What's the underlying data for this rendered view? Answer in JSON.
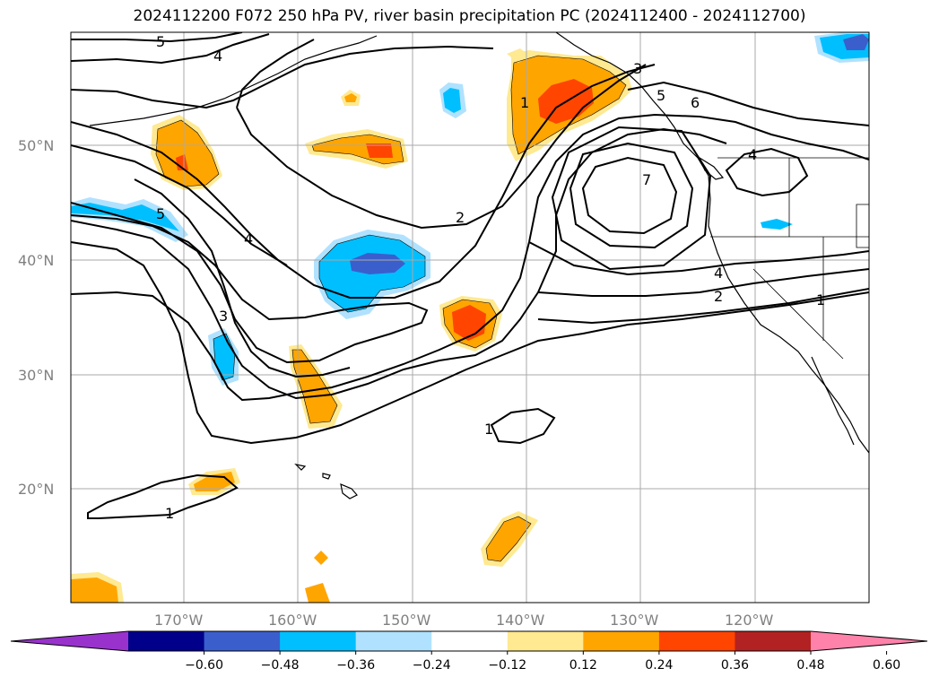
{
  "title": "2024112200 F072 250 hPa PV, river basin precipitation PC (2024112400 - 2024112700)",
  "lat_labels": [
    "50°N",
    "40°N",
    "30°N",
    "20°N"
  ],
  "lon_labels": [
    "170°W",
    "160°W",
    "150°W",
    "140°W",
    "130°W",
    "120°W"
  ],
  "pv_contour_labels": [
    "5",
    "4",
    "5",
    "4",
    "3",
    "1",
    "2",
    "1",
    "1",
    "3",
    "5",
    "6",
    "7",
    "4",
    "4",
    "2",
    "1"
  ],
  "colorbar": {
    "ticks": [
      "−0.60",
      "−0.48",
      "−0.36",
      "−0.24",
      "−0.12",
      "0.12",
      "0.24",
      "0.36",
      "0.48",
      "0.60"
    ],
    "colors": [
      "#9932CC",
      "#00008B",
      "#3A5FCD",
      "#00BFFF",
      "#B0E2FF",
      "#FFFFFF",
      "#FFE991",
      "#FFA500",
      "#FF4500",
      "#B22222",
      "#FF82AB"
    ]
  },
  "colors": {
    "pos_weak": "#FFE991",
    "pos_mid": "#FFA500",
    "pos_strong": "#FF4500",
    "neg_weak": "#B0E2FF",
    "neg_mid": "#00BFFF",
    "neg_strong": "#3A5FCD"
  }
}
